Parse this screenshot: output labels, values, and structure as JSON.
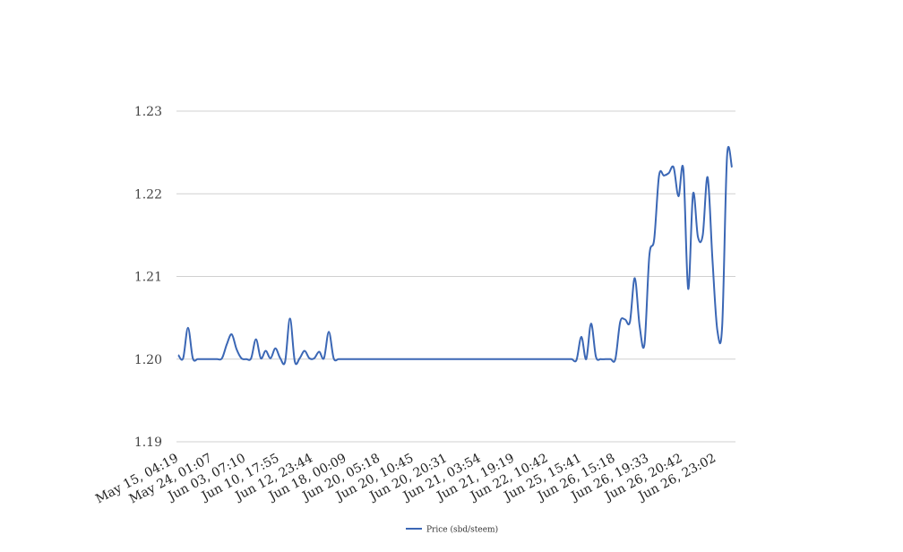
{
  "chart_data": {
    "type": "line",
    "title": "",
    "xlabel": "",
    "ylabel": "",
    "ylim": [
      1.19,
      1.23
    ],
    "yticks": [
      "1.19",
      "1.20",
      "1.21",
      "1.22",
      "1.23"
    ],
    "grid": true,
    "legend_position": "bottom",
    "line_color": "#3b67b5",
    "x_tick_labels": [
      "May 15, 04:19",
      "May 24, 01:07",
      "Jun 03, 07:10",
      "Jun 10, 17:55",
      "Jun 12, 23:44",
      "Jun 18, 00:09",
      "Jun 20, 05:18",
      "Jun 20, 10:45",
      "Jun 20, 20:31",
      "Jun 21, 03:54",
      "Jun 21, 19:19",
      "Jun 22, 10:42",
      "Jun 25, 15:41",
      "Jun 26, 15:18",
      "Jun 26, 19:33",
      "Jun 26, 20:42",
      "Jun 26, 23:02"
    ],
    "series": [
      {
        "name": "Price (sbd/steem)",
        "color": "#3b67b5",
        "values": [
          1.2005,
          1.2001,
          1.2038,
          1.2001,
          1.2,
          1.2,
          1.2,
          1.2,
          1.2,
          1.2001,
          1.2018,
          1.203,
          1.2012,
          1.2001,
          1.2,
          1.2001,
          1.2024,
          1.2001,
          1.201,
          1.2001,
          1.2013,
          1.2001,
          1.1997,
          1.2049,
          1.1997,
          1.2001,
          1.201,
          1.2001,
          1.2001,
          1.2009,
          1.2001,
          1.2033,
          1.2001,
          1.2,
          1.2,
          1.2,
          1.2,
          1.2,
          1.2,
          1.2,
          1.2,
          1.2,
          1.2,
          1.2,
          1.2,
          1.2,
          1.2,
          1.2,
          1.2,
          1.2,
          1.2,
          1.2,
          1.2,
          1.2,
          1.2,
          1.2,
          1.2,
          1.2,
          1.2,
          1.2,
          1.2,
          1.2,
          1.2,
          1.2,
          1.2,
          1.2,
          1.2,
          1.2,
          1.2,
          1.2,
          1.2,
          1.2,
          1.2,
          1.2,
          1.2,
          1.2,
          1.2,
          1.2,
          1.2,
          1.2,
          1.2,
          1.2,
          1.1999,
          1.2027,
          1.2,
          1.2043,
          1.2003,
          1.2,
          1.2,
          1.2,
          1.2,
          1.2045,
          1.2048,
          1.2045,
          1.2098,
          1.204,
          1.2018,
          1.2125,
          1.2145,
          1.2222,
          1.2222,
          1.2225,
          1.2232,
          1.2197,
          1.223,
          1.2085,
          1.22,
          1.2148,
          1.215,
          1.222,
          1.212,
          1.2035,
          1.204,
          1.2245,
          1.2232
        ]
      }
    ]
  }
}
